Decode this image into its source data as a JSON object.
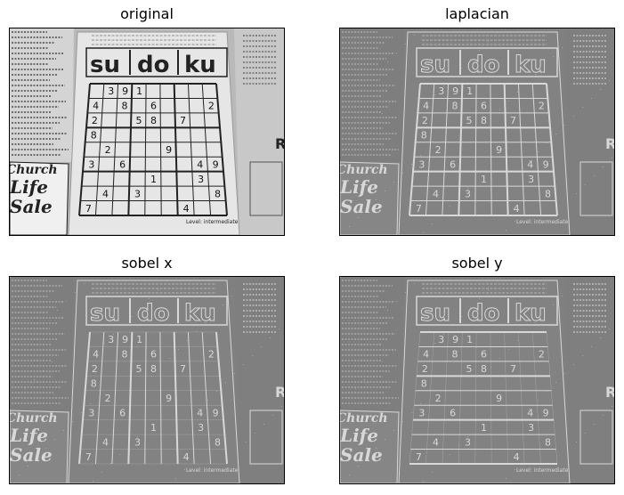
{
  "panels": [
    {
      "title": "original",
      "mode": "original"
    },
    {
      "title": "laplacian",
      "mode": "laplacian"
    },
    {
      "title": "sobel x",
      "mode": "sobelx"
    },
    {
      "title": "sobel y",
      "mode": "sobely"
    }
  ],
  "image_text": {
    "masthead": [
      "su",
      "do",
      "ku"
    ],
    "church_lines": [
      "Church",
      "Life",
      "Sale"
    ],
    "level_label": "Level: intermediate",
    "grid_digits": [
      [
        "",
        "3",
        "9",
        "1",
        "",
        "",
        "",
        "",
        ""
      ],
      [
        "4",
        "",
        "8",
        "",
        "6",
        "",
        "",
        "",
        "2"
      ],
      [
        "2",
        "",
        "",
        "5",
        "8",
        "",
        "7",
        "",
        ""
      ],
      [
        "8",
        "",
        "",
        "",
        "",
        "",
        "",
        "",
        ""
      ],
      [
        "",
        "2",
        "",
        "",
        "",
        "9",
        "",
        "",
        ""
      ],
      [
        "3",
        "",
        "6",
        "",
        "",
        "",
        "",
        "4",
        "9"
      ],
      [
        "",
        "",
        "",
        "",
        "1",
        "",
        "",
        "3",
        ""
      ],
      [
        "",
        "4",
        "",
        "3",
        "",
        "",
        "",
        "",
        "8"
      ],
      [
        "7",
        "",
        "",
        "",
        "",
        "",
        "4",
        "",
        ""
      ]
    ]
  }
}
